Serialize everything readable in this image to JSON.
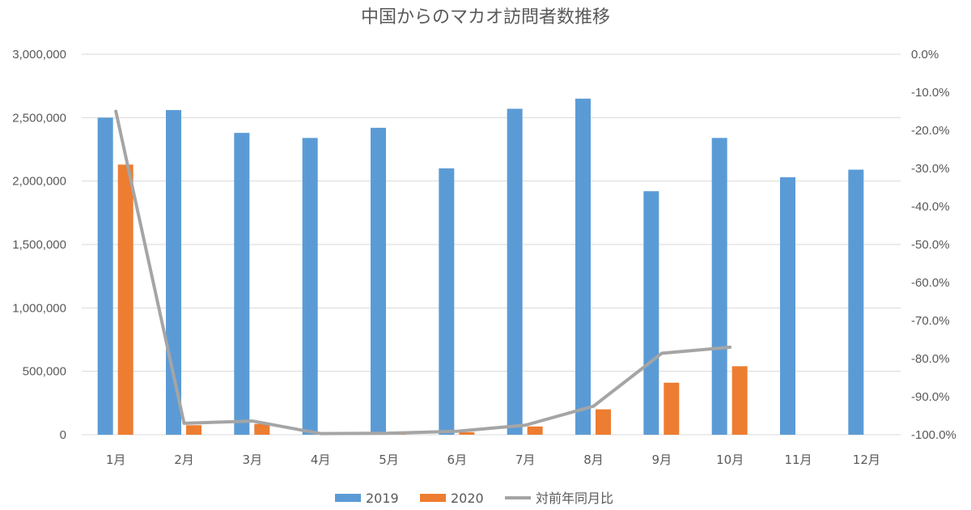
{
  "chart_data": {
    "type": "bar",
    "title": "中国からのマカオ訪問者数推移",
    "categories": [
      "1月",
      "2月",
      "3月",
      "4月",
      "5月",
      "6月",
      "7月",
      "8月",
      "9月",
      "10月",
      "11月",
      "12月"
    ],
    "series": [
      {
        "name": "2019",
        "type": "bar",
        "axis": "left",
        "color": "#5B9BD5",
        "values": [
          2500000,
          2560000,
          2380000,
          2340000,
          2420000,
          2100000,
          2570000,
          2650000,
          1920000,
          2340000,
          2030000,
          2090000
        ]
      },
      {
        "name": "2020",
        "type": "bar",
        "axis": "left",
        "color": "#ED7D31",
        "values": [
          2130000,
          75000,
          85000,
          8000,
          10000,
          20000,
          65000,
          200000,
          410000,
          540000,
          null,
          null
        ]
      },
      {
        "name": "対前年同月比",
        "type": "line",
        "axis": "right",
        "color": "#A5A5A5",
        "values": [
          -15.0,
          -97.0,
          -96.4,
          -99.7,
          -99.6,
          -99.1,
          -97.5,
          -92.5,
          -78.6,
          -77.0,
          null,
          null
        ]
      }
    ],
    "y_left": {
      "min": 0,
      "max": 3000000,
      "step": 500000,
      "tick_labels": [
        "0",
        "500,000",
        "1,000,000",
        "1,500,000",
        "2,000,000",
        "2,500,000",
        "3,000,000"
      ]
    },
    "y_right": {
      "min": -100,
      "max": 0,
      "step": 10,
      "tick_labels": [
        "-100.0%",
        "-90.0%",
        "-80.0%",
        "-70.0%",
        "-60.0%",
        "-50.0%",
        "-40.0%",
        "-30.0%",
        "-20.0%",
        "-10.0%",
        "0.0%"
      ]
    },
    "grid": true,
    "legend_position": "bottom"
  }
}
